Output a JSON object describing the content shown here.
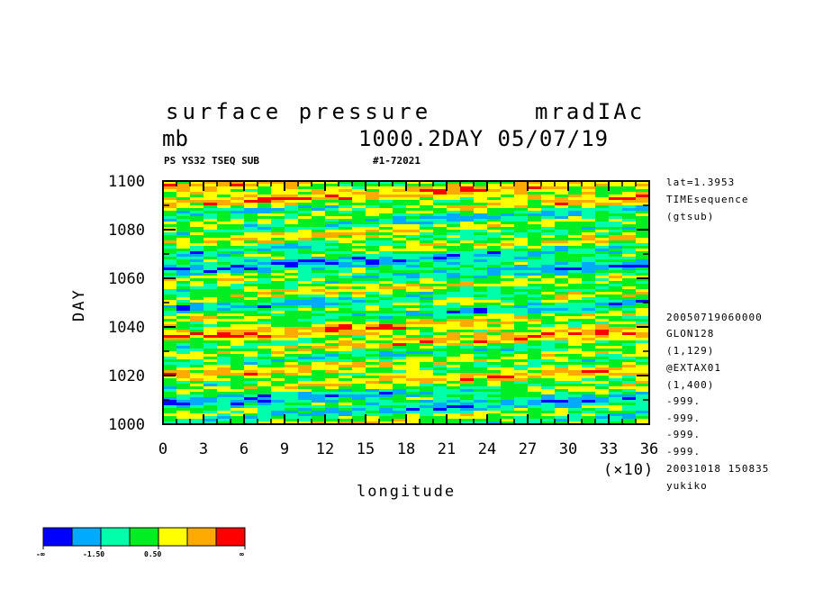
{
  "header": {
    "title": "surface pressure",
    "run_name": "mradIAc",
    "units": "mb",
    "stamp": "1000.2DAY 05/07/19",
    "subtitle_left": "PS YS32 TSEQ SUB",
    "subtitle_right": "#1-72021"
  },
  "side_info": [
    "lat=1.3953",
    "TIMEsequence",
    "(gtsub)",
    "20050719060000",
    "GLON128",
    "(1,129)",
    "@EXTAX01",
    "(1,400)",
    "-999.",
    "-999.",
    "-999.",
    "-999.",
    "20031018 150835",
    "yukiko"
  ],
  "colorbar": {
    "colors": [
      "#0000ff",
      "#00aaff",
      "#00ffaa",
      "#00ee22",
      "#ffff00",
      "#ffaa00",
      "#ff0000"
    ],
    "labels": [
      "-∞",
      "-1.50",
      "0.50",
      "∞"
    ]
  },
  "chart_data": {
    "type": "heatmap",
    "title": "surface pressure",
    "xlabel": "longitude",
    "ylabel": "DAY",
    "x_scale_note": "(×10)",
    "x_ticks": [
      "0",
      "3",
      "6",
      "9",
      "12",
      "15",
      "18",
      "21",
      "24",
      "27",
      "30",
      "33",
      "36"
    ],
    "y_ticks": [
      "1000",
      "1020",
      "1040",
      "1060",
      "1080",
      "1100"
    ],
    "xlim": [
      0,
      36
    ],
    "ylim": [
      1000,
      1100
    ],
    "levels": [
      "-∞",
      "-1.50",
      "0.50",
      "∞"
    ],
    "colors": [
      "#0000ff",
      "#00aaff",
      "#00ffaa",
      "#00ee22",
      "#ffff00",
      "#ffaa00",
      "#ff0000"
    ]
  }
}
